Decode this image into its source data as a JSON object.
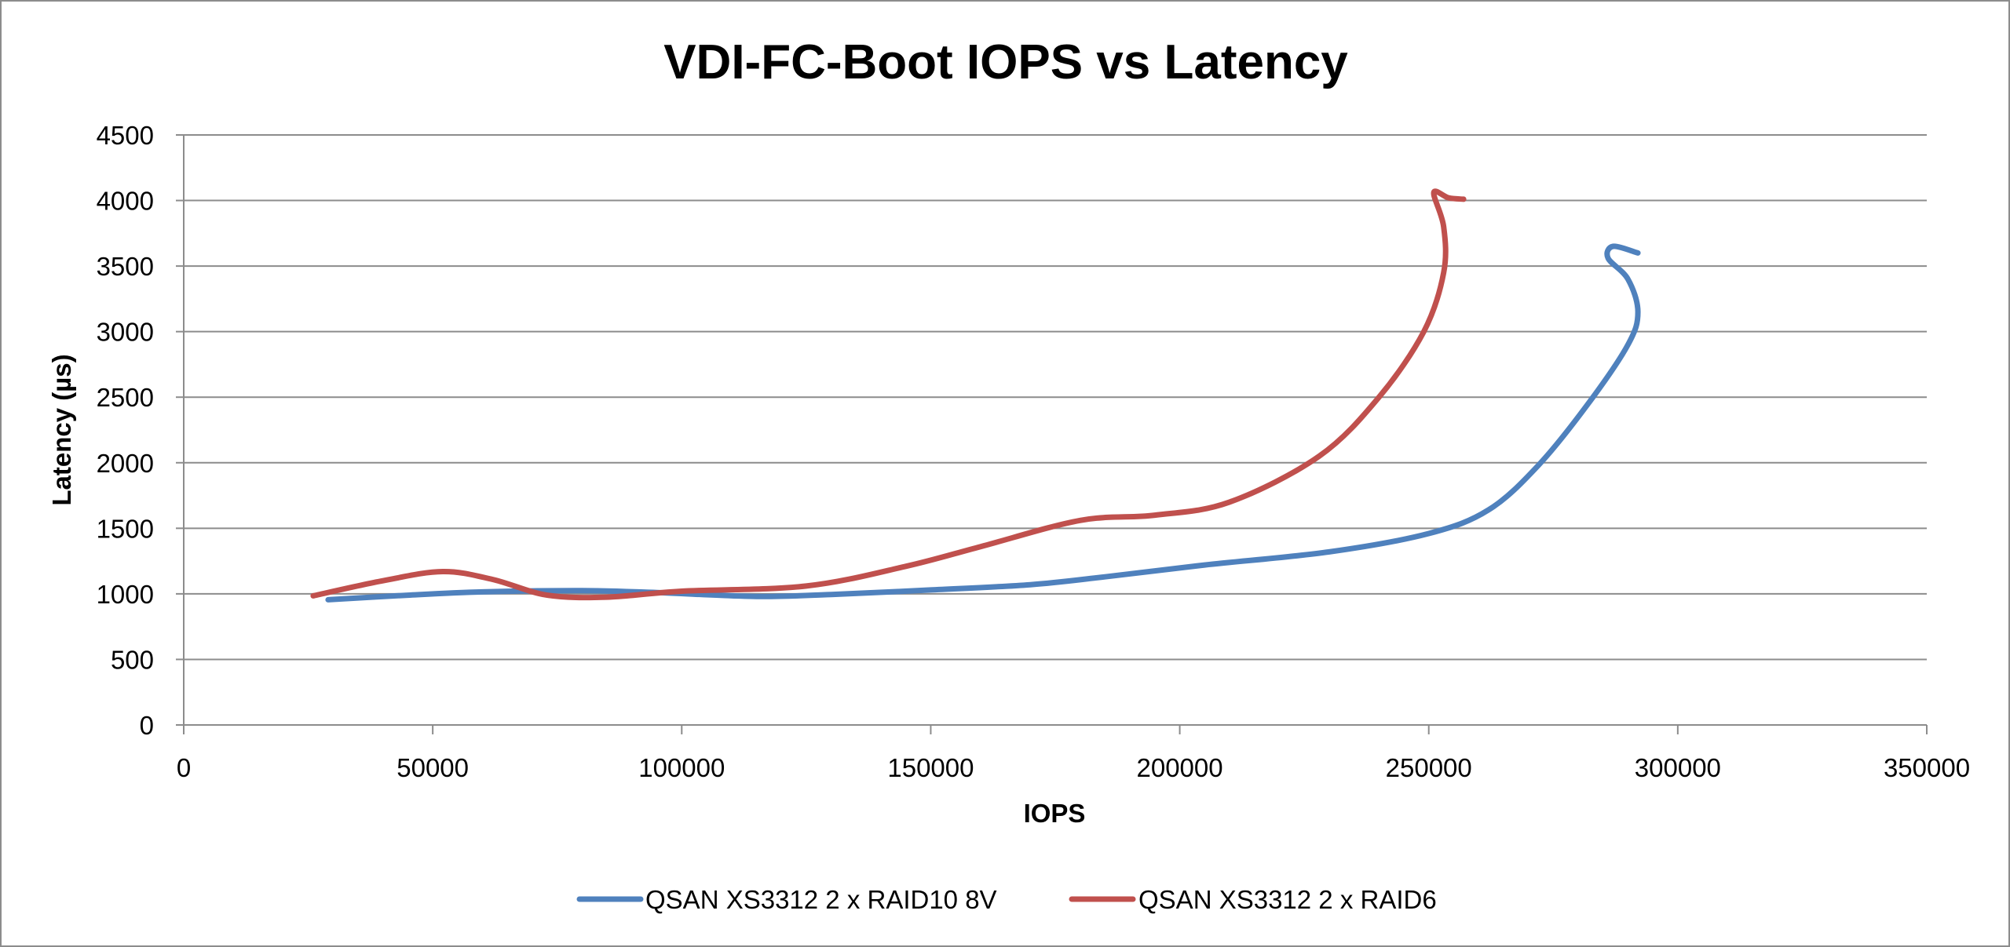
{
  "chart_data": {
    "type": "line",
    "title": "VDI-FC-Boot IOPS vs Latency",
    "xlabel": "IOPS",
    "ylabel": "Latency (µs)",
    "xlim": [
      0,
      350000
    ],
    "ylim": [
      0,
      4500
    ],
    "x_ticks": [
      0,
      50000,
      100000,
      150000,
      200000,
      250000,
      300000,
      350000
    ],
    "y_ticks": [
      0,
      500,
      1000,
      1500,
      2000,
      2500,
      3000,
      3500,
      4000,
      4500
    ],
    "grid": "horizontal",
    "legend_position": "bottom",
    "series": [
      {
        "name": "QSAN XS3312 2 x RAID10 8V",
        "color": "#4f81bd",
        "points": [
          [
            29000,
            955
          ],
          [
            45000,
            990
          ],
          [
            60000,
            1015
          ],
          [
            80000,
            1025
          ],
          [
            95000,
            1010
          ],
          [
            115000,
            980
          ],
          [
            130000,
            995
          ],
          [
            150000,
            1030
          ],
          [
            170000,
            1070
          ],
          [
            185000,
            1130
          ],
          [
            205000,
            1220
          ],
          [
            230000,
            1320
          ],
          [
            250000,
            1460
          ],
          [
            262000,
            1640
          ],
          [
            272000,
            1980
          ],
          [
            282000,
            2450
          ],
          [
            290000,
            2900
          ],
          [
            292000,
            3150
          ],
          [
            290000,
            3400
          ],
          [
            286000,
            3560
          ],
          [
            287000,
            3650
          ],
          [
            292000,
            3600
          ]
        ]
      },
      {
        "name": "QSAN XS3312 2 x RAID6",
        "color": "#c0504d",
        "points": [
          [
            26000,
            985
          ],
          [
            40000,
            1100
          ],
          [
            52000,
            1170
          ],
          [
            62000,
            1110
          ],
          [
            73000,
            990
          ],
          [
            85000,
            975
          ],
          [
            100000,
            1020
          ],
          [
            125000,
            1060
          ],
          [
            145000,
            1210
          ],
          [
            160000,
            1360
          ],
          [
            180000,
            1560
          ],
          [
            195000,
            1600
          ],
          [
            210000,
            1700
          ],
          [
            228000,
            2050
          ],
          [
            240000,
            2500
          ],
          [
            249000,
            3000
          ],
          [
            253000,
            3450
          ],
          [
            253000,
            3800
          ],
          [
            251000,
            4060
          ],
          [
            254000,
            4020
          ],
          [
            257000,
            4010
          ]
        ]
      }
    ]
  }
}
